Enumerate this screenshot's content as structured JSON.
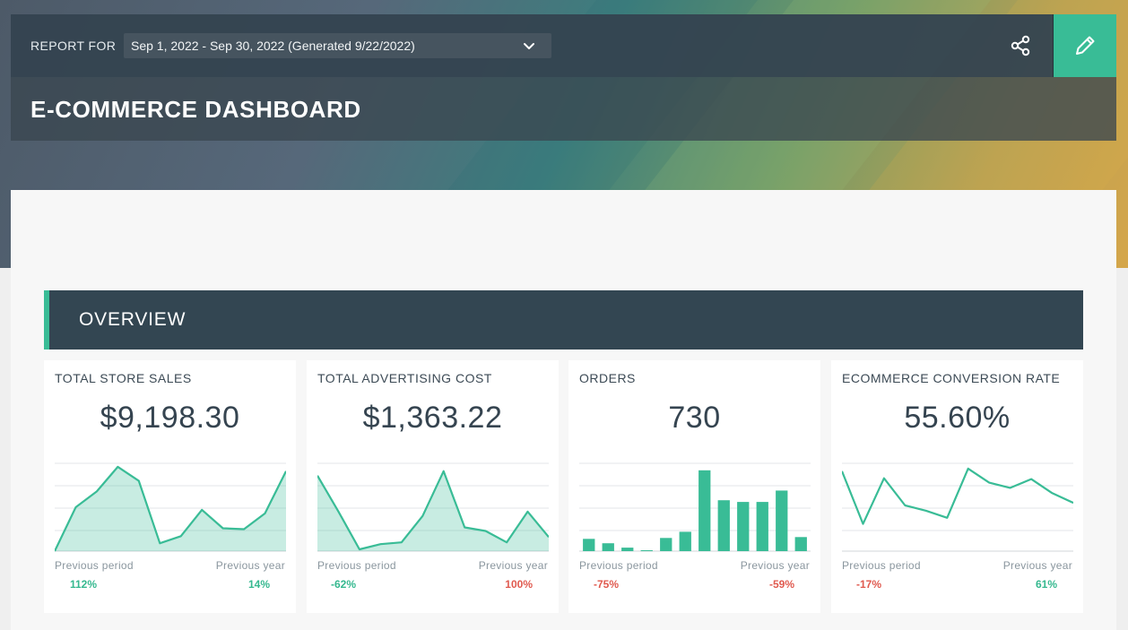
{
  "header": {
    "report_for_label": "REPORT FOR",
    "date_range": "Sep 1, 2022 - Sep 30, 2022 (Generated 9/22/2022)",
    "title": "E-COMMERCE DASHBOARD"
  },
  "icons": {
    "share": "share-icon",
    "edit": "pencil-icon",
    "dropdown": "chevron-down-icon"
  },
  "colors": {
    "accent": "#39bc96",
    "header_bg": "#344450",
    "positive": "#35b88f",
    "negative": "#e05a4f"
  },
  "section": {
    "title": "OVERVIEW"
  },
  "cards": [
    {
      "title": "TOTAL STORE SALES",
      "value": "$9,198.30",
      "prev_period_label": "Previous period",
      "prev_year_label": "Previous year",
      "prev_period_value": "112%",
      "prev_year_value": "14%",
      "prev_period_trend": "positive",
      "prev_year_trend": "positive"
    },
    {
      "title": "TOTAL ADVERTISING COST",
      "value": "$1,363.22",
      "prev_period_label": "Previous period",
      "prev_year_label": "Previous year",
      "prev_period_value": "-62%",
      "prev_year_value": "100%",
      "prev_period_trend": "positive",
      "prev_year_trend": "negative"
    },
    {
      "title": "ORDERS",
      "value": "730",
      "prev_period_label": "Previous period",
      "prev_year_label": "Previous year",
      "prev_period_value": "-75%",
      "prev_year_value": "-59%",
      "prev_period_trend": "negative",
      "prev_year_trend": "negative"
    },
    {
      "title": "ECOMMERCE CONVERSION RATE",
      "value": "55.60%",
      "prev_period_label": "Previous period",
      "prev_year_label": "Previous year",
      "prev_period_value": "-17%",
      "prev_year_value": "61%",
      "prev_period_trend": "negative",
      "prev_year_trend": "positive"
    }
  ],
  "chart_data": [
    {
      "type": "area",
      "values": [
        0,
        50,
        68,
        96,
        80,
        9,
        17,
        47,
        26,
        25,
        43,
        91
      ]
    },
    {
      "type": "area",
      "values": [
        86,
        45,
        2,
        8,
        10,
        40,
        91,
        27,
        23,
        10,
        45,
        16
      ]
    },
    {
      "type": "bar",
      "values": [
        14,
        9,
        4,
        1,
        15,
        22,
        92,
        58,
        56,
        56,
        69,
        16
      ]
    },
    {
      "type": "line",
      "values": [
        91,
        31,
        83,
        52,
        46,
        38,
        94,
        78,
        72,
        82,
        66,
        55
      ]
    }
  ]
}
